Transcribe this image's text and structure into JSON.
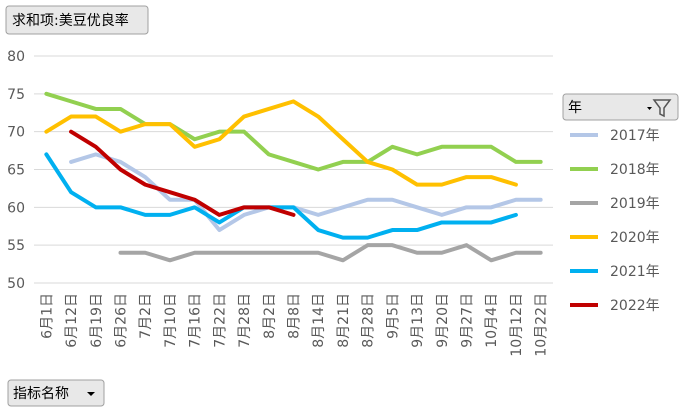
{
  "chart_data": {
    "type": "line",
    "title": "求和项:美豆优良率",
    "legend_title": "年",
    "x_label": "指标名称",
    "categories": [
      "6月1日",
      "6月12日",
      "6月19日",
      "6月26日",
      "7月2日",
      "7月10日",
      "7月16日",
      "7月22日",
      "7月28日",
      "8月2日",
      "8月8日",
      "8月14日",
      "8月21日",
      "8月28日",
      "9月5日",
      "9月13日",
      "9月20日",
      "9月27日",
      "10月4日",
      "10月12日",
      "10月22日"
    ],
    "series": [
      {
        "name": "2017年",
        "color": "#b4c7e7",
        "values": [
          null,
          66,
          67,
          66,
          64,
          61,
          61,
          57,
          59,
          60,
          60,
          59,
          60,
          61,
          61,
          60,
          59,
          60,
          60,
          61,
          61
        ]
      },
      {
        "name": "2018年",
        "color": "#92d050",
        "values": [
          75,
          74,
          73,
          73,
          71,
          71,
          69,
          70,
          70,
          67,
          66,
          65,
          66,
          66,
          68,
          67,
          68,
          68,
          68,
          66,
          66
        ]
      },
      {
        "name": "2019年",
        "color": "#a5a5a5",
        "values": [
          null,
          null,
          null,
          54,
          54,
          53,
          54,
          54,
          54,
          54,
          54,
          54,
          53,
          55,
          55,
          54,
          54,
          55,
          53,
          54,
          54
        ]
      },
      {
        "name": "2020年",
        "color": "#ffc000",
        "values": [
          70,
          72,
          72,
          70,
          71,
          71,
          68,
          69,
          72,
          73,
          74,
          72,
          69,
          66,
          65,
          63,
          63,
          64,
          64,
          63,
          null
        ]
      },
      {
        "name": "2021年",
        "color": "#00b0f0",
        "values": [
          67,
          62,
          60,
          60,
          59,
          59,
          60,
          58,
          60,
          60,
          60,
          57,
          56,
          56,
          57,
          57,
          58,
          58,
          58,
          59,
          null
        ]
      },
      {
        "name": "2022年",
        "color": "#c00000",
        "values": [
          null,
          70,
          68,
          65,
          63,
          62,
          61,
          59,
          60,
          60,
          59,
          null,
          null,
          null,
          null,
          null,
          null,
          null,
          null,
          null,
          null
        ]
      }
    ],
    "ylim": [
      50,
      80
    ],
    "yticks": [
      50,
      55,
      60,
      65,
      70,
      75,
      80
    ],
    "grid": true,
    "legend": "right"
  }
}
